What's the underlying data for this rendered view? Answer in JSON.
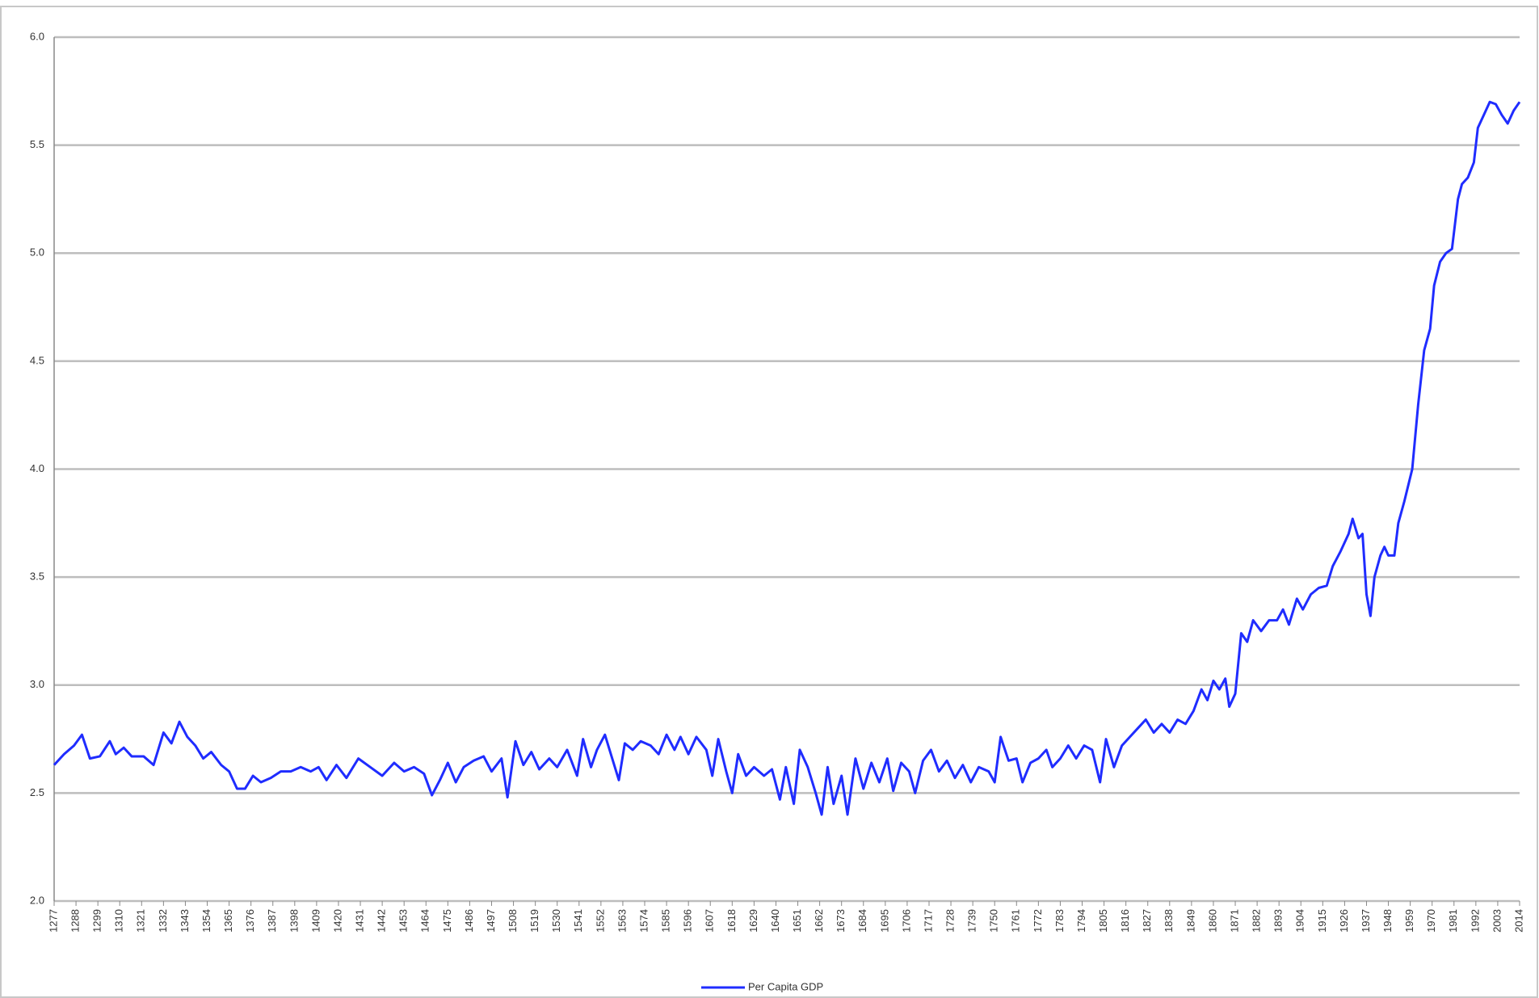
{
  "chart_data": {
    "type": "line",
    "x": [
      1277,
      1282,
      1287,
      1291,
      1295,
      1300,
      1305,
      1308,
      1312,
      1316,
      1322,
      1327,
      1332,
      1336,
      1340,
      1344,
      1348,
      1352,
      1356,
      1361,
      1365,
      1369,
      1373,
      1377,
      1381,
      1386,
      1391,
      1396,
      1401,
      1406,
      1410,
      1414,
      1419,
      1424,
      1430,
      1436,
      1442,
      1448,
      1453,
      1458,
      1463,
      1467,
      1471,
      1475,
      1479,
      1483,
      1488,
      1493,
      1497,
      1502,
      1505,
      1509,
      1513,
      1517,
      1521,
      1526,
      1530,
      1535,
      1540,
      1543,
      1547,
      1550,
      1554,
      1558,
      1561,
      1564,
      1568,
      1572,
      1577,
      1581,
      1585,
      1589,
      1592,
      1596,
      1600,
      1605,
      1608,
      1611,
      1615,
      1618,
      1621,
      1625,
      1629,
      1634,
      1638,
      1642,
      1645,
      1649,
      1652,
      1656,
      1660,
      1663,
      1666,
      1669,
      1673,
      1676,
      1680,
      1684,
      1688,
      1692,
      1696,
      1699,
      1703,
      1707,
      1710,
      1714,
      1718,
      1722,
      1726,
      1730,
      1734,
      1738,
      1742,
      1747,
      1750,
      1753,
      1757,
      1761,
      1764,
      1768,
      1772,
      1776,
      1779,
      1783,
      1787,
      1791,
      1795,
      1799,
      1803,
      1806,
      1810,
      1814,
      1818,
      1822,
      1826,
      1830,
      1834,
      1838,
      1842,
      1846,
      1850,
      1854,
      1857,
      1860,
      1863,
      1866,
      1868,
      1871,
      1874,
      1877,
      1880,
      1884,
      1888,
      1892,
      1895,
      1898,
      1902,
      1905,
      1909,
      1913,
      1917,
      1920,
      1924,
      1928,
      1930,
      1933,
      1935,
      1937,
      1939,
      1941,
      1944,
      1946,
      1948,
      1951,
      1953,
      1956,
      1960,
      1963,
      1966,
      1969,
      1971,
      1974,
      1977,
      1980,
      1983,
      1985,
      1988,
      1991,
      1993,
      1996,
      1999,
      2002,
      2005,
      2008,
      2011,
      2014
    ],
    "series": [
      {
        "name": "Per Capita GDP",
        "color": "#1f2cff",
        "values": [
          2.63,
          2.68,
          2.72,
          2.77,
          2.66,
          2.67,
          2.74,
          2.68,
          2.71,
          2.67,
          2.67,
          2.63,
          2.78,
          2.73,
          2.83,
          2.76,
          2.72,
          2.66,
          2.69,
          2.63,
          2.6,
          2.52,
          2.52,
          2.58,
          2.55,
          2.57,
          2.6,
          2.6,
          2.62,
          2.6,
          2.62,
          2.56,
          2.63,
          2.57,
          2.66,
          2.62,
          2.58,
          2.64,
          2.6,
          2.62,
          2.59,
          2.49,
          2.56,
          2.64,
          2.55,
          2.62,
          2.65,
          2.67,
          2.6,
          2.66,
          2.48,
          2.74,
          2.63,
          2.69,
          2.61,
          2.66,
          2.62,
          2.7,
          2.58,
          2.75,
          2.62,
          2.7,
          2.77,
          2.65,
          2.56,
          2.73,
          2.7,
          2.74,
          2.72,
          2.68,
          2.77,
          2.7,
          2.76,
          2.68,
          2.76,
          2.7,
          2.58,
          2.75,
          2.6,
          2.5,
          2.68,
          2.58,
          2.62,
          2.58,
          2.61,
          2.47,
          2.62,
          2.45,
          2.7,
          2.62,
          2.5,
          2.4,
          2.62,
          2.45,
          2.58,
          2.4,
          2.66,
          2.52,
          2.64,
          2.55,
          2.66,
          2.51,
          2.64,
          2.6,
          2.5,
          2.65,
          2.7,
          2.6,
          2.65,
          2.57,
          2.63,
          2.55,
          2.62,
          2.6,
          2.55,
          2.76,
          2.65,
          2.66,
          2.55,
          2.64,
          2.66,
          2.7,
          2.62,
          2.66,
          2.72,
          2.66,
          2.72,
          2.7,
          2.55,
          2.75,
          2.62,
          2.72,
          2.76,
          2.8,
          2.84,
          2.78,
          2.82,
          2.78,
          2.84,
          2.82,
          2.88,
          2.98,
          2.93,
          3.02,
          2.98,
          3.03,
          2.9,
          2.96,
          3.24,
          3.2,
          3.3,
          3.25,
          3.3,
          3.3,
          3.35,
          3.28,
          3.4,
          3.35,
          3.42,
          3.45,
          3.46,
          3.55,
          3.62,
          3.7,
          3.77,
          3.68,
          3.7,
          3.42,
          3.32,
          3.5,
          3.6,
          3.64,
          3.6,
          3.6,
          3.75,
          3.85,
          4.0,
          4.3,
          4.55,
          4.65,
          4.85,
          4.96,
          5.0,
          5.02,
          5.25,
          5.32,
          5.35,
          5.42,
          5.58,
          5.64,
          5.7,
          5.69,
          5.64,
          5.6,
          5.66,
          5.7
        ]
      }
    ],
    "xlim": [
      1277,
      2014
    ],
    "xticks": [
      1277,
      1288,
      1299,
      1310,
      1321,
      1332,
      1343,
      1354,
      1365,
      1376,
      1387,
      1398,
      1409,
      1420,
      1431,
      1442,
      1453,
      1464,
      1475,
      1486,
      1497,
      1508,
      1519,
      1530,
      1541,
      1552,
      1563,
      1574,
      1585,
      1596,
      1607,
      1618,
      1629,
      1640,
      1651,
      1662,
      1673,
      1684,
      1695,
      1706,
      1717,
      1728,
      1739,
      1750,
      1761,
      1772,
      1783,
      1794,
      1805,
      1816,
      1827,
      1838,
      1849,
      1860,
      1871,
      1882,
      1893,
      1904,
      1915,
      1926,
      1937,
      1948,
      1959,
      1970,
      1981,
      1992,
      2003,
      2014
    ],
    "ylim": [
      2,
      6
    ],
    "yticks": [
      {
        "value": 2,
        "label": "2.0"
      },
      2.5,
      {
        "value": 3,
        "label": "3.0"
      },
      3.5,
      {
        "value": 4,
        "label": "4.0"
      },
      4.5,
      {
        "value": 5,
        "label": "5.0"
      },
      5.5,
      {
        "value": 6,
        "label": "6.0"
      }
    ],
    "grid": true,
    "legend": "bottom"
  }
}
